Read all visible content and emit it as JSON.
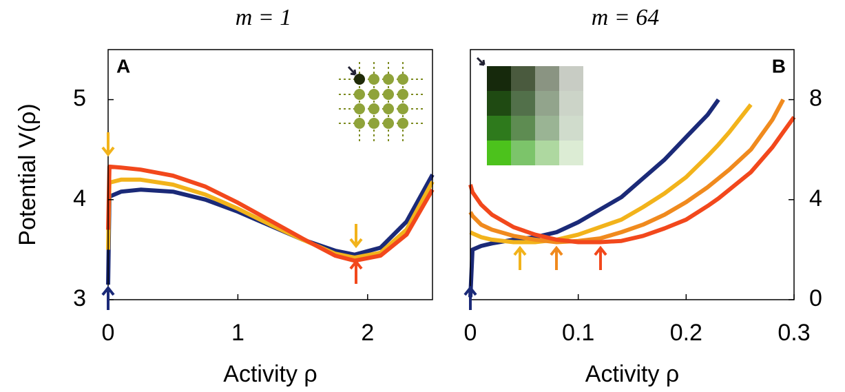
{
  "chart_data": [
    {
      "type": "line",
      "title": "m = 1",
      "panel_label": "A",
      "x_label": "Activity ρ",
      "y_label": "Potential V(ρ)",
      "xlim": [
        0,
        2.5
      ],
      "ylim": [
        3,
        5.5
      ],
      "xticks": [
        0,
        1,
        2
      ],
      "yticks": [
        3,
        4,
        5
      ],
      "x": [
        0,
        0.01,
        0.1,
        0.25,
        0.5,
        0.75,
        1,
        1.25,
        1.5,
        1.75,
        1.9,
        2.1,
        2.3,
        2.5
      ],
      "series": [
        {
          "color": "#1b2a78",
          "values": [
            3.15,
            4.03,
            4.08,
            4.1,
            4.08,
            4.0,
            3.88,
            3.74,
            3.6,
            3.49,
            3.45,
            3.52,
            3.78,
            4.25
          ]
        },
        {
          "color": "#f2b31b",
          "values": [
            3.5,
            4.17,
            4.2,
            4.2,
            4.15,
            4.05,
            3.91,
            3.75,
            3.6,
            3.46,
            3.42,
            3.47,
            3.7,
            4.18
          ]
        },
        {
          "color": "#f2481c",
          "values": [
            3.7,
            4.33,
            4.32,
            4.3,
            4.24,
            4.13,
            3.97,
            3.79,
            3.61,
            3.44,
            3.39,
            3.44,
            3.65,
            4.1
          ]
        }
      ]
    },
    {
      "type": "line",
      "title": "m = 64",
      "panel_label": "B",
      "x_label": "Activity ρ",
      "xlim": [
        0,
        0.3
      ],
      "ylim": [
        0,
        10
      ],
      "xticks": [
        0,
        0.1,
        0.2,
        0.3
      ],
      "yticks": [
        0,
        4,
        8
      ],
      "x": [
        0,
        0.002,
        0.01,
        0.02,
        0.04,
        0.06,
        0.08,
        0.1,
        0.12,
        0.14,
        0.16,
        0.18,
        0.2,
        0.22,
        0.23,
        0.24,
        0.26,
        0.28,
        0.29,
        0.3
      ],
      "series": [
        {
          "color": "#1b2a78",
          "values": [
            0.1,
            2.0,
            2.15,
            2.25,
            2.4,
            2.5,
            2.7,
            3.1,
            3.6,
            4.1,
            4.85,
            5.6,
            6.5,
            7.4,
            8.0,
            null,
            null,
            null,
            null,
            null
          ]
        },
        {
          "color": "#f2b31b",
          "values": [
            2.7,
            2.65,
            2.5,
            2.4,
            2.3,
            2.3,
            2.4,
            2.6,
            2.9,
            3.2,
            3.7,
            4.25,
            4.9,
            5.75,
            6.2,
            6.7,
            7.8,
            null,
            null,
            null
          ]
        },
        {
          "color": "#f08a1e",
          "values": [
            3.5,
            3.35,
            3.0,
            2.8,
            2.55,
            2.4,
            2.3,
            2.35,
            2.45,
            2.7,
            3.0,
            3.4,
            3.9,
            4.5,
            4.85,
            5.2,
            6.0,
            7.2,
            8.0,
            null
          ]
        },
        {
          "color": "#f2481c",
          "values": [
            4.6,
            4.3,
            3.8,
            3.4,
            2.9,
            2.6,
            2.4,
            2.3,
            2.3,
            2.35,
            2.55,
            2.85,
            3.2,
            3.75,
            4.05,
            4.4,
            5.1,
            6.1,
            6.7,
            7.3
          ]
        }
      ]
    }
  ]
}
